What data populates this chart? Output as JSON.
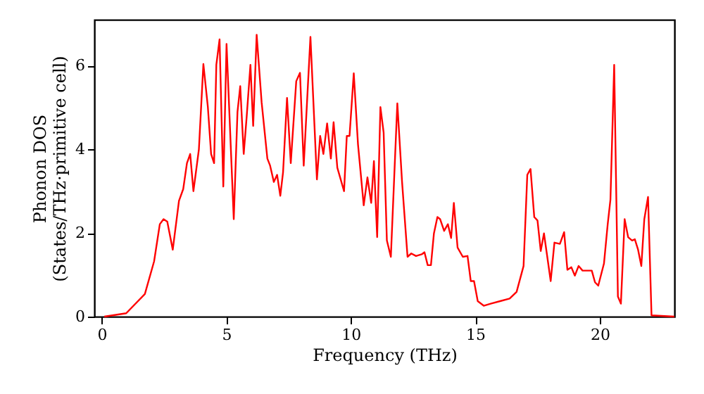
{
  "chart_data": {
    "type": "line",
    "xlabel": "Frequency (THz)",
    "ylabel": "Phonon DOS\n(States/THz·primitive cell)",
    "xlim": [
      -0.3,
      23.0
    ],
    "ylim": [
      0,
      7.1
    ],
    "xticks": [
      0,
      5,
      10,
      15,
      20
    ],
    "yticks": [
      0,
      2,
      4,
      6
    ],
    "grid": false,
    "line_style": "solid",
    "marker": "none",
    "series": [
      {
        "color": "#ff0000",
        "x": [
          0.1,
          0.98,
          1.73,
          2.1,
          2.33,
          2.48,
          2.63,
          2.85,
          3.1,
          3.27,
          3.42,
          3.55,
          3.68,
          3.9,
          4.08,
          4.26,
          4.39,
          4.51,
          4.6,
          4.73,
          4.88,
          5.01,
          5.3,
          5.45,
          5.56,
          5.7,
          5.82,
          5.97,
          6.08,
          6.22,
          6.42,
          6.65,
          6.76,
          6.91,
          7.04,
          7.17,
          7.28,
          7.44,
          7.59,
          7.81,
          7.96,
          8.11,
          8.38,
          8.64,
          8.77,
          8.9,
          9.05,
          9.2,
          9.31,
          9.46,
          9.73,
          9.84,
          9.95,
          10.12,
          10.29,
          10.52,
          10.67,
          10.82,
          10.93,
          11.06,
          11.19,
          11.32,
          11.45,
          11.61,
          11.87,
          12.06,
          12.28,
          12.43,
          12.62,
          12.85,
          12.96,
          13.09,
          13.22,
          13.34,
          13.48,
          13.59,
          13.75,
          13.9,
          14.03,
          14.14,
          14.29,
          14.5,
          14.69,
          14.82,
          14.95,
          15.1,
          15.34,
          15.62,
          16.0,
          16.38,
          16.66,
          16.94,
          17.09,
          17.22,
          17.37,
          17.5,
          17.63,
          17.76,
          18.03,
          18.18,
          18.4,
          18.57,
          18.7,
          18.86,
          19.0,
          19.15,
          19.31,
          19.49,
          19.68,
          19.81,
          19.94,
          20.17,
          20.32,
          20.43,
          20.58,
          20.73,
          20.85,
          21.0,
          21.14,
          21.3,
          21.41,
          21.54,
          21.67,
          21.79,
          21.94,
          22.08,
          23.0
        ],
        "values": [
          0.0,
          0.08,
          0.54,
          1.32,
          2.21,
          2.33,
          2.27,
          1.6,
          2.77,
          3.05,
          3.67,
          3.89,
          3.0,
          4.0,
          6.04,
          5.01,
          3.89,
          3.67,
          6.02,
          6.63,
          3.11,
          6.52,
          2.33,
          4.9,
          5.51,
          3.89,
          4.79,
          6.02,
          4.56,
          6.74,
          5.12,
          3.78,
          3.61,
          3.22,
          3.39,
          2.89,
          3.45,
          5.23,
          3.67,
          5.63,
          5.83,
          3.61,
          6.69,
          3.28,
          4.32,
          3.89,
          4.62,
          3.78,
          4.65,
          3.56,
          3.0,
          4.32,
          4.32,
          5.82,
          4.12,
          2.66,
          3.33,
          2.72,
          3.72,
          1.9,
          5.01,
          4.4,
          1.82,
          1.43,
          5.1,
          3.22,
          1.43,
          1.51,
          1.45,
          1.49,
          1.54,
          1.23,
          1.23,
          1.99,
          2.38,
          2.33,
          2.05,
          2.21,
          1.88,
          2.72,
          1.65,
          1.43,
          1.45,
          0.85,
          0.85,
          0.37,
          0.26,
          0.31,
          0.37,
          0.43,
          0.59,
          1.21,
          3.39,
          3.53,
          2.38,
          2.3,
          1.57,
          1.99,
          0.85,
          1.77,
          1.74,
          2.02,
          1.12,
          1.18,
          0.98,
          1.21,
          1.1,
          1.1,
          1.1,
          0.82,
          0.74,
          1.27,
          2.21,
          2.8,
          6.02,
          0.48,
          0.31,
          2.33,
          1.9,
          1.82,
          1.85,
          1.6,
          1.21,
          2.33,
          2.86,
          0.03,
          0.0
        ]
      }
    ]
  }
}
